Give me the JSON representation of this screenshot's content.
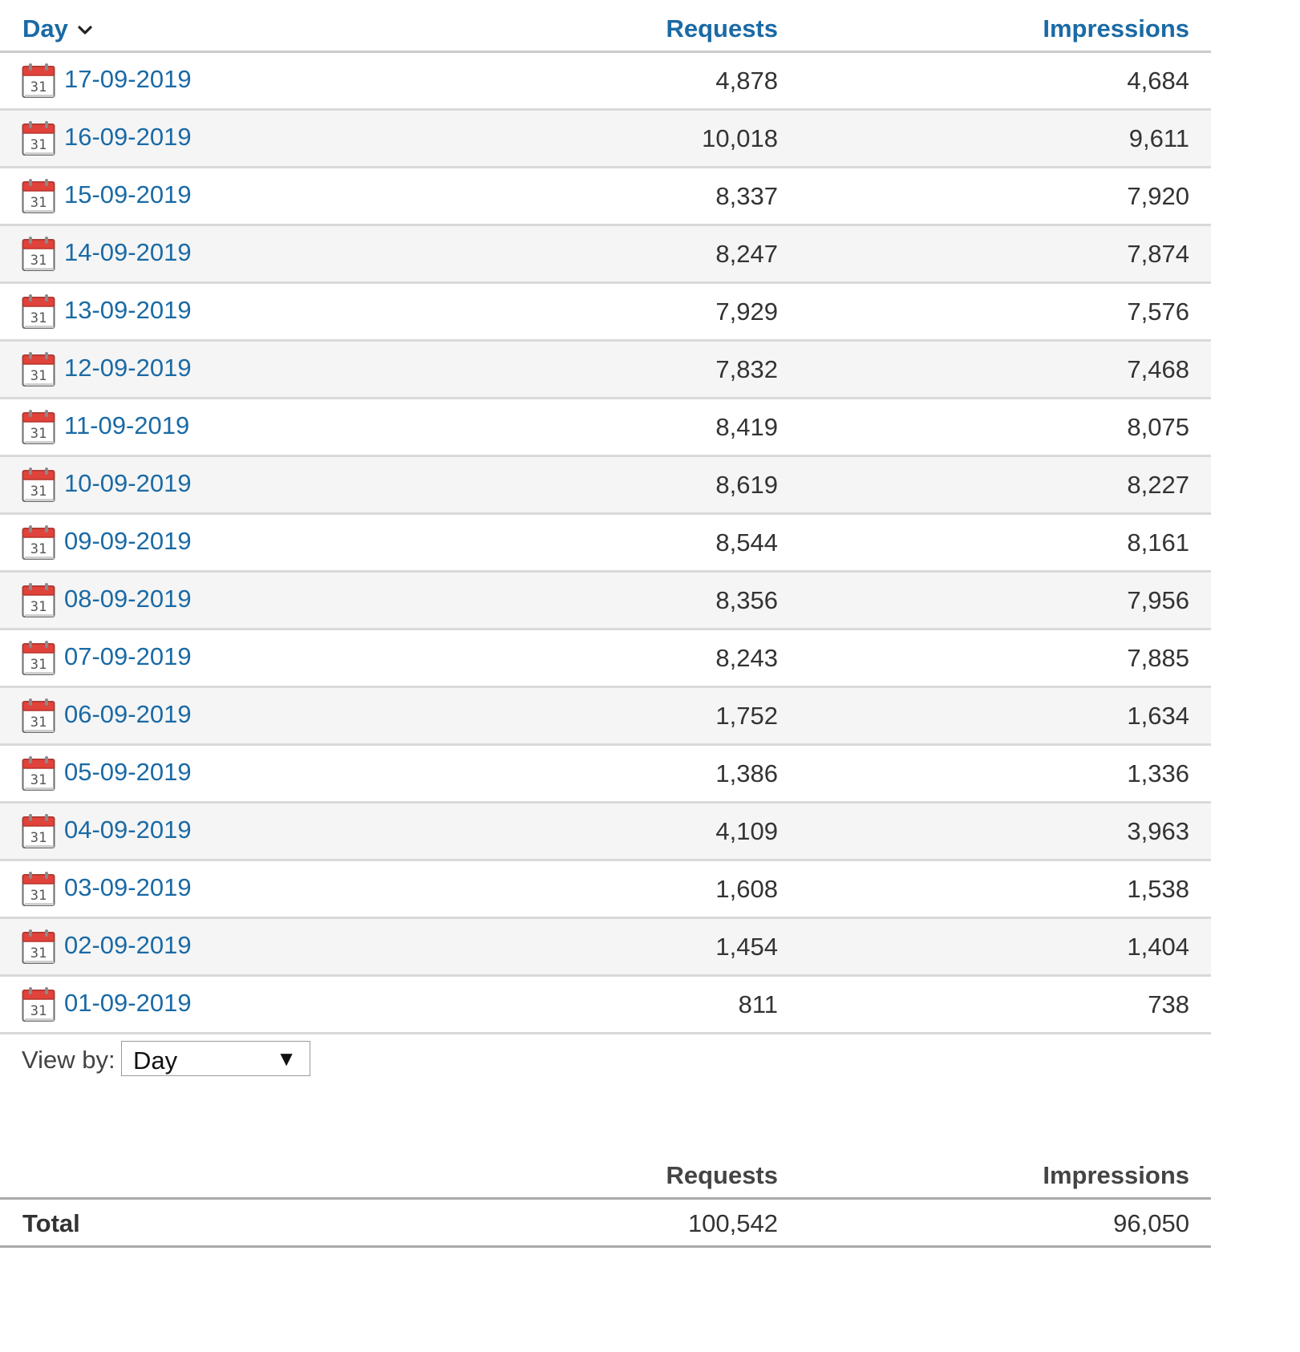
{
  "table": {
    "headers": {
      "day": "Day",
      "requests": "Requests",
      "impressions": "Impressions"
    },
    "sort_icon": "chevron-down-icon",
    "rows": [
      {
        "date": "17-09-2019",
        "requests": "4,878",
        "impressions": "4,684"
      },
      {
        "date": "16-09-2019",
        "requests": "10,018",
        "impressions": "9,611"
      },
      {
        "date": "15-09-2019",
        "requests": "8,337",
        "impressions": "7,920"
      },
      {
        "date": "14-09-2019",
        "requests": "8,247",
        "impressions": "7,874"
      },
      {
        "date": "13-09-2019",
        "requests": "7,929",
        "impressions": "7,576"
      },
      {
        "date": "12-09-2019",
        "requests": "7,832",
        "impressions": "7,468"
      },
      {
        "date": "11-09-2019",
        "requests": "8,419",
        "impressions": "8,075"
      },
      {
        "date": "10-09-2019",
        "requests": "8,619",
        "impressions": "8,227"
      },
      {
        "date": "09-09-2019",
        "requests": "8,544",
        "impressions": "8,161"
      },
      {
        "date": "08-09-2019",
        "requests": "8,356",
        "impressions": "7,956"
      },
      {
        "date": "07-09-2019",
        "requests": "8,243",
        "impressions": "7,885"
      },
      {
        "date": "06-09-2019",
        "requests": "1,752",
        "impressions": "1,634"
      },
      {
        "date": "05-09-2019",
        "requests": "1,386",
        "impressions": "1,336"
      },
      {
        "date": "04-09-2019",
        "requests": "4,109",
        "impressions": "3,963"
      },
      {
        "date": "03-09-2019",
        "requests": "1,608",
        "impressions": "1,538"
      },
      {
        "date": "02-09-2019",
        "requests": "1,454",
        "impressions": "1,404"
      },
      {
        "date": "01-09-2019",
        "requests": "811",
        "impressions": "738"
      }
    ],
    "row_icon": "calendar-icon",
    "calendar_icon_number": "31"
  },
  "view_by": {
    "label": "View by:",
    "selected": "Day",
    "arrow": "▼"
  },
  "totals": {
    "headers": {
      "requests": "Requests",
      "impressions": "Impressions"
    },
    "label": "Total",
    "requests": "100,542",
    "impressions": "96,050"
  },
  "colors": {
    "link": "#1a6aa5",
    "text": "#333333",
    "row_alt": "#f5f5f5",
    "border": "#d9d9d9",
    "calendar_red": "#e0433b"
  }
}
